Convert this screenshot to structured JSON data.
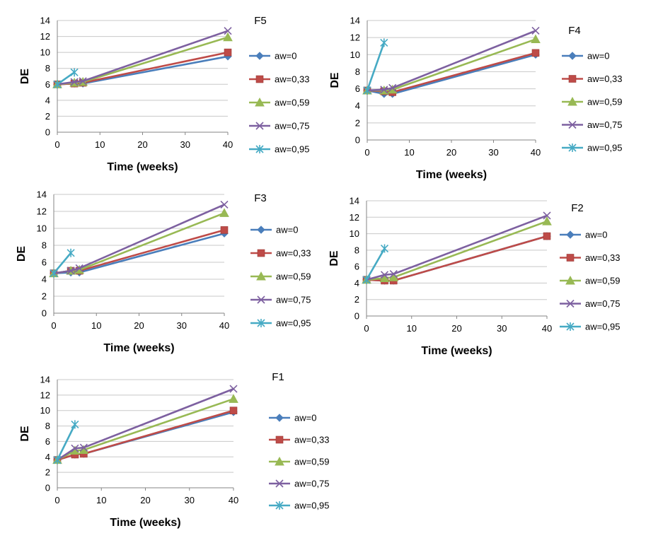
{
  "chart_data": [
    {
      "type": "line",
      "title": "F5",
      "xlabel": "Time (weeks)",
      "ylabel": "DE",
      "xlim": [
        0,
        40
      ],
      "ylim": [
        0,
        14
      ],
      "xticks": [
        "0",
        "10",
        "20",
        "30",
        "40"
      ],
      "yticks": [
        "0",
        "2",
        "4",
        "6",
        "8",
        "10",
        "12",
        "14"
      ],
      "legend": "right",
      "series": [
        {
          "name": "aw=0",
          "color": "#4a7ebb",
          "marker": "diamond",
          "x": [
            0,
            4,
            6,
            40
          ],
          "y": [
            6.0,
            6.1,
            6.1,
            9.5
          ]
        },
        {
          "name": "aw=0,33",
          "color": "#be4b48",
          "marker": "square",
          "x": [
            0,
            4,
            6,
            40
          ],
          "y": [
            6.0,
            6.1,
            6.2,
            10.0
          ]
        },
        {
          "name": "aw=0,59",
          "color": "#98b954",
          "marker": "triangle",
          "x": [
            0,
            4,
            6,
            40
          ],
          "y": [
            6.0,
            6.2,
            6.3,
            11.9
          ]
        },
        {
          "name": "aw=0,75",
          "color": "#7d60a0",
          "marker": "x",
          "x": [
            0,
            4,
            6,
            40
          ],
          "y": [
            6.0,
            6.3,
            6.4,
            12.7
          ]
        },
        {
          "name": "aw=0,95",
          "color": "#46aac4",
          "marker": "star",
          "x": [
            0,
            4
          ],
          "y": [
            6.0,
            7.5
          ]
        }
      ]
    },
    {
      "type": "line",
      "title": "F4",
      "xlabel": "Time (weeks)",
      "ylabel": "DE",
      "xlim": [
        0,
        40
      ],
      "ylim": [
        0,
        14
      ],
      "xticks": [
        "0",
        "10",
        "20",
        "30",
        "40"
      ],
      "yticks": [
        "0",
        "2",
        "4",
        "6",
        "8",
        "10",
        "12",
        "14"
      ],
      "legend": "right",
      "series": [
        {
          "name": "aw=0",
          "color": "#4a7ebb",
          "marker": "diamond",
          "x": [
            0,
            4,
            6,
            40
          ],
          "y": [
            5.8,
            5.4,
            5.4,
            10.0
          ]
        },
        {
          "name": "aw=0,33",
          "color": "#be4b48",
          "marker": "square",
          "x": [
            0,
            4,
            6,
            40
          ],
          "y": [
            5.8,
            5.7,
            5.6,
            10.2
          ]
        },
        {
          "name": "aw=0,59",
          "color": "#98b954",
          "marker": "triangle",
          "x": [
            0,
            4,
            6,
            40
          ],
          "y": [
            5.8,
            5.8,
            5.9,
            11.8
          ]
        },
        {
          "name": "aw=0,75",
          "color": "#7d60a0",
          "marker": "x",
          "x": [
            0,
            4,
            6,
            40
          ],
          "y": [
            5.8,
            5.9,
            6.1,
            12.8
          ]
        },
        {
          "name": "aw=0,95",
          "color": "#46aac4",
          "marker": "star",
          "x": [
            0,
            4
          ],
          "y": [
            5.8,
            11.4
          ]
        }
      ]
    },
    {
      "type": "line",
      "title": "F3",
      "xlabel": "Time (weeks)",
      "ylabel": "DE",
      "xlim": [
        0,
        40
      ],
      "ylim": [
        0,
        14
      ],
      "xticks": [
        "0",
        "10",
        "20",
        "30",
        "40"
      ],
      "yticks": [
        "0",
        "2",
        "4",
        "6",
        "8",
        "10",
        "12",
        "14"
      ],
      "legend": "right",
      "series": [
        {
          "name": "aw=0",
          "color": "#4a7ebb",
          "marker": "diamond",
          "x": [
            0,
            4,
            6,
            40
          ],
          "y": [
            4.7,
            4.8,
            4.8,
            9.4
          ]
        },
        {
          "name": "aw=0,33",
          "color": "#be4b48",
          "marker": "square",
          "x": [
            0,
            4,
            6,
            40
          ],
          "y": [
            4.7,
            5.0,
            5.0,
            9.8
          ]
        },
        {
          "name": "aw=0,59",
          "color": "#98b954",
          "marker": "triangle",
          "x": [
            0,
            4,
            6,
            40
          ],
          "y": [
            4.7,
            5.0,
            5.1,
            11.8
          ]
        },
        {
          "name": "aw=0,75",
          "color": "#7d60a0",
          "marker": "x",
          "x": [
            0,
            4,
            6,
            40
          ],
          "y": [
            4.7,
            5.0,
            5.3,
            12.8
          ]
        },
        {
          "name": "aw=0,95",
          "color": "#46aac4",
          "marker": "star",
          "x": [
            0,
            4
          ],
          "y": [
            4.7,
            7.1
          ]
        }
      ]
    },
    {
      "type": "line",
      "title": "F2",
      "xlabel": "Time (weeks)",
      "ylabel": "DE",
      "xlim": [
        0,
        40
      ],
      "ylim": [
        0,
        14
      ],
      "xticks": [
        "0",
        "10",
        "20",
        "30",
        "40"
      ],
      "yticks": [
        "0",
        "2",
        "4",
        "6",
        "8",
        "10",
        "12",
        "14"
      ],
      "legend": "right",
      "series": [
        {
          "name": "aw=0",
          "color": "#4a7ebb",
          "marker": "diamond",
          "x": [
            0,
            4,
            6,
            40
          ],
          "y": [
            4.4,
            4.3,
            4.3,
            9.7
          ]
        },
        {
          "name": "aw=0,33",
          "color": "#be4b48",
          "marker": "square",
          "x": [
            0,
            4,
            6,
            40
          ],
          "y": [
            4.4,
            4.3,
            4.3,
            9.7
          ]
        },
        {
          "name": "aw=0,59",
          "color": "#98b954",
          "marker": "triangle",
          "x": [
            0,
            4,
            6,
            40
          ],
          "y": [
            4.4,
            4.6,
            4.7,
            11.5
          ]
        },
        {
          "name": "aw=0,75",
          "color": "#7d60a0",
          "marker": "x",
          "x": [
            0,
            4,
            6,
            40
          ],
          "y": [
            4.4,
            5.0,
            5.1,
            12.2
          ]
        },
        {
          "name": "aw=0,95",
          "color": "#46aac4",
          "marker": "star",
          "x": [
            0,
            4
          ],
          "y": [
            4.4,
            8.2
          ]
        }
      ]
    },
    {
      "type": "line",
      "title": "F1",
      "xlabel": "Time (weeks)",
      "ylabel": "DE",
      "xlim": [
        0,
        40
      ],
      "ylim": [
        0,
        14
      ],
      "xticks": [
        "0",
        "10",
        "20",
        "30",
        "40"
      ],
      "yticks": [
        "0",
        "2",
        "4",
        "6",
        "8",
        "10",
        "12",
        "14"
      ],
      "legend": "right",
      "series": [
        {
          "name": "aw=0",
          "color": "#4a7ebb",
          "marker": "diamond",
          "x": [
            0,
            4,
            6,
            40
          ],
          "y": [
            3.6,
            4.3,
            4.4,
            9.8
          ]
        },
        {
          "name": "aw=0,33",
          "color": "#be4b48",
          "marker": "square",
          "x": [
            0,
            4,
            6,
            40
          ],
          "y": [
            3.6,
            4.3,
            4.4,
            10.0
          ]
        },
        {
          "name": "aw=0,59",
          "color": "#98b954",
          "marker": "triangle",
          "x": [
            0,
            4,
            6,
            40
          ],
          "y": [
            3.6,
            4.8,
            4.9,
            11.5
          ]
        },
        {
          "name": "aw=0,75",
          "color": "#7d60a0",
          "marker": "x",
          "x": [
            0,
            4,
            6,
            40
          ],
          "y": [
            3.6,
            5.1,
            5.2,
            12.8
          ]
        },
        {
          "name": "aw=0,95",
          "color": "#46aac4",
          "marker": "star",
          "x": [
            0,
            4
          ],
          "y": [
            3.6,
            8.2
          ]
        }
      ]
    }
  ]
}
